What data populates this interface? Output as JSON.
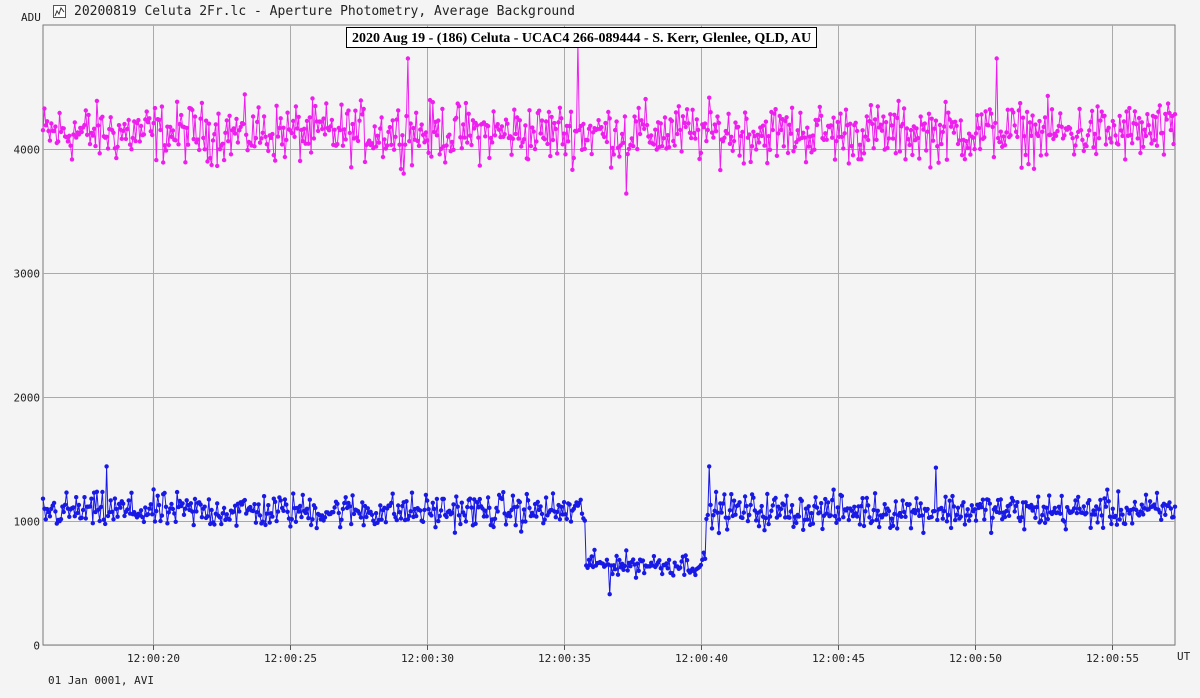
{
  "window": {
    "title": "20200819 Celuta 2Fr.lc - Aperture Photometry, Average Background"
  },
  "footer": {
    "text": "01 Jan 0001, AVI"
  },
  "chart_data": {
    "type": "line",
    "title": "2020 Aug 19 - (186) Celuta - UCAC4 266-089444 - S. Kerr, Glenlee, QLD, AU",
    "ylabel": "ADU",
    "xlabel": "UT",
    "ylim": [
      0,
      5000
    ],
    "xlim": [
      0,
      41.3
    ],
    "y_ticks": [
      "0",
      "1000",
      "2000",
      "3000",
      "4000"
    ],
    "y_tick_values": [
      0,
      1000,
      2000,
      3000,
      4000
    ],
    "x_ticks": [
      "12:00:20",
      "12:00:25",
      "12:00:30",
      "12:00:35",
      "12:00:40",
      "12:00:45",
      "12:00:50",
      "12:00:55"
    ],
    "x_tick_values": [
      4,
      9,
      14,
      19,
      24,
      29,
      34,
      39
    ],
    "grid": true,
    "markers": true,
    "sampling": {
      "points": 820,
      "x_start": 0.0,
      "x_end": 41.3
    },
    "series": [
      {
        "color": "#ee1fee",
        "baseline": 4130,
        "scatter": 200,
        "note_points": [
          [
            19.5,
            4870
          ],
          [
            13.3,
            4730
          ],
          [
            34.8,
            4730
          ],
          [
            21.3,
            3640
          ]
        ]
      },
      {
        "color": "#1919e6",
        "baseline": 1080,
        "scatter": 120,
        "dip": {
          "start": 19.8,
          "end": 24.2,
          "level": 650,
          "scatter": 80
        },
        "note_points": [
          [
            2.3,
            1440
          ],
          [
            24.3,
            1440
          ],
          [
            32.6,
            1430
          ],
          [
            20.7,
            410
          ]
        ]
      }
    ]
  },
  "icons": {
    "app": "chart-app-icon"
  }
}
